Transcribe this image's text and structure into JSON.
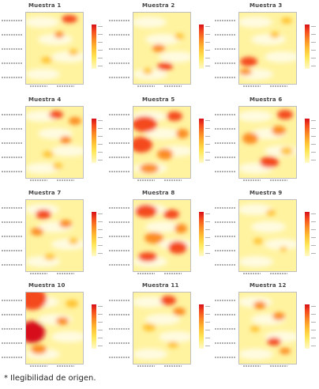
{
  "chart_data": [
    {
      "type": "heatmap",
      "title": "Muestra 1"
    },
    {
      "type": "heatmap",
      "title": "Muestra 2"
    },
    {
      "type": "heatmap",
      "title": "Muestra 3"
    },
    {
      "type": "heatmap",
      "title": "Muestra 4"
    },
    {
      "type": "heatmap",
      "title": "Muestra 5"
    },
    {
      "type": "heatmap",
      "title": "Muestra 6"
    },
    {
      "type": "heatmap",
      "title": "Muestra 7"
    },
    {
      "type": "heatmap",
      "title": "Muestra 8"
    },
    {
      "type": "heatmap",
      "title": "Muestra 9"
    },
    {
      "type": "heatmap",
      "title": "Muestra 10"
    },
    {
      "type": "heatmap",
      "title": "Muestra 11"
    },
    {
      "type": "heatmap",
      "title": "Muestra 12"
    }
  ],
  "colorscale": [
    "#fff9c8",
    "#ffe85a",
    "#ffc233",
    "#fb8c24",
    "#f44a1c",
    "#d7101a"
  ],
  "footnote": "* Ilegibilidad de origen."
}
